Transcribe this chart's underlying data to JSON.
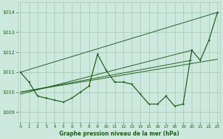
{
  "title": "Graphe pression niveau de la mer (hPa)",
  "bg_color": "#cde8dc",
  "grid_color": "#a8ccbc",
  "line_color": "#1a5c1a",
  "xlim": [
    -0.3,
    23.3
  ],
  "ylim": [
    1008.5,
    1014.5
  ],
  "yticks": [
    1009,
    1010,
    1011,
    1012,
    1013,
    1014
  ],
  "xticks": [
    0,
    1,
    2,
    3,
    4,
    5,
    6,
    7,
    8,
    9,
    10,
    11,
    12,
    13,
    14,
    15,
    16,
    17,
    18,
    19,
    20,
    21,
    22,
    23
  ],
  "hours": [
    0,
    1,
    2,
    3,
    4,
    5,
    6,
    7,
    8,
    9,
    10,
    11,
    12,
    13,
    14,
    15,
    16,
    17,
    18,
    19,
    20,
    21,
    22,
    23
  ],
  "pressure": [
    1011.0,
    1010.5,
    1009.8,
    1009.7,
    1009.6,
    1009.5,
    1009.7,
    1010.0,
    1010.3,
    1011.9,
    1011.1,
    1010.5,
    1010.5,
    1010.4,
    1009.9,
    1009.4,
    1009.4,
    1009.8,
    1009.3,
    1009.4,
    1012.1,
    1011.6,
    1012.6,
    1014.0
  ],
  "line1_x": [
    0,
    23
  ],
  "line1_y": [
    1011.0,
    1014.0
  ],
  "line2_x": [
    0,
    23
  ],
  "line2_y": [
    1010.0,
    1011.65
  ],
  "line3_x": [
    0,
    20
  ],
  "line3_y": [
    1009.9,
    1012.1
  ],
  "line4_x": [
    0,
    20
  ],
  "line4_y": [
    1010.0,
    1011.6
  ]
}
